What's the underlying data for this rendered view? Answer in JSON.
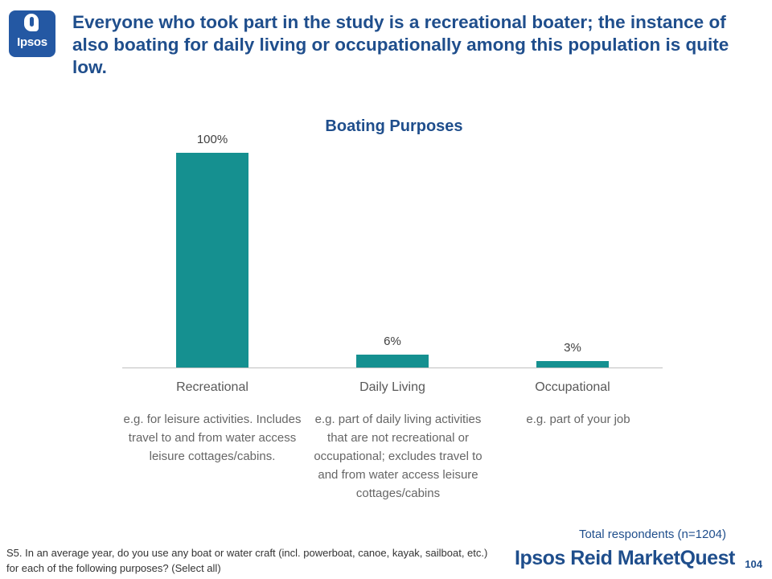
{
  "logo": {
    "text": "Ipsos"
  },
  "headline": "Everyone who took part in the study is a recreational boater; the instance of also boating for daily living or occupationally among this population is quite low.",
  "chart_data": {
    "type": "bar",
    "title": "Boating Purposes",
    "categories": [
      "Recreational",
      "Daily Living",
      "Occupational"
    ],
    "values": [
      100,
      6,
      3
    ],
    "value_labels": [
      "100%",
      "6%",
      "3%"
    ],
    "ylim": [
      0,
      100
    ],
    "bar_color": "#159090",
    "axis_color": "#bfbfbf",
    "grid": false,
    "xlabel": "",
    "ylabel": ""
  },
  "descriptions": [
    "e.g. for leisure activities. Includes travel to and from water access leisure cottages/cabins.",
    "e.g. part of daily living activities that are not recreational or occupational; excludes travel to and from water access leisure cottages/cabins",
    "e.g. part of your job"
  ],
  "total_respondents": "Total respondents (n=1204)",
  "footnote": "S5. In an average year, do you use any boat or water craft (incl. powerboat, canoe, kayak, sailboat, etc.) for each of the following purposes? (Select all)",
  "brand": "Ipsos Reid MarketQuest",
  "page_number": "104"
}
